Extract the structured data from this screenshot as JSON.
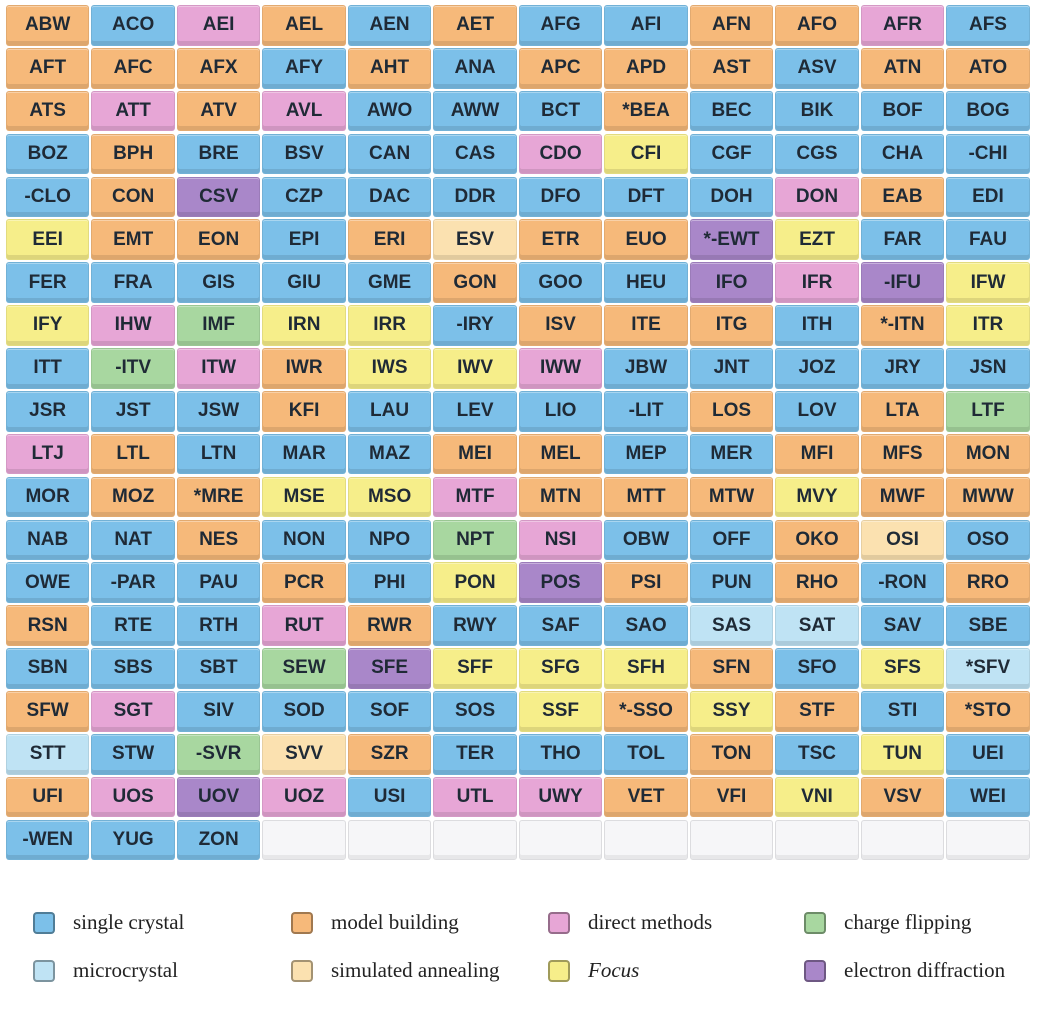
{
  "colors": {
    "single_crystal": "#7cc0e9",
    "model_building": "#f6b97a",
    "direct_methods": "#e7a6d6",
    "charge_flipping": "#a8d7a0",
    "microcrystal": "#bfe3f4",
    "simulated_annealing": "#fbe1b0",
    "focus": "#f6ee8a",
    "electron_diffraction": "#a987c9"
  },
  "cells": [
    {
      "code": "ABW",
      "method": "model_building"
    },
    {
      "code": "ACO",
      "method": "single_crystal"
    },
    {
      "code": "AEI",
      "method": "direct_methods"
    },
    {
      "code": "AEL",
      "method": "model_building"
    },
    {
      "code": "AEN",
      "method": "single_crystal"
    },
    {
      "code": "AET",
      "method": "model_building"
    },
    {
      "code": "AFG",
      "method": "single_crystal"
    },
    {
      "code": "AFI",
      "method": "single_crystal"
    },
    {
      "code": "AFN",
      "method": "model_building"
    },
    {
      "code": "AFO",
      "method": "model_building"
    },
    {
      "code": "AFR",
      "method": "direct_methods"
    },
    {
      "code": "AFS",
      "method": "single_crystal"
    },
    {
      "code": "AFT",
      "method": "model_building"
    },
    {
      "code": "AFC",
      "method": "model_building"
    },
    {
      "code": "AFX",
      "method": "model_building"
    },
    {
      "code": "AFY",
      "method": "single_crystal"
    },
    {
      "code": "AHT",
      "method": "model_building"
    },
    {
      "code": "ANA",
      "method": "single_crystal"
    },
    {
      "code": "APC",
      "method": "model_building"
    },
    {
      "code": "APD",
      "method": "model_building"
    },
    {
      "code": "AST",
      "method": "model_building"
    },
    {
      "code": "ASV",
      "method": "single_crystal"
    },
    {
      "code": "ATN",
      "method": "model_building"
    },
    {
      "code": "ATO",
      "method": "model_building"
    },
    {
      "code": "ATS",
      "method": "model_building"
    },
    {
      "code": "ATT",
      "method": "direct_methods"
    },
    {
      "code": "ATV",
      "method": "model_building"
    },
    {
      "code": "AVL",
      "method": "direct_methods"
    },
    {
      "code": "AWO",
      "method": "single_crystal"
    },
    {
      "code": "AWW",
      "method": "single_crystal"
    },
    {
      "code": "BCT",
      "method": "single_crystal"
    },
    {
      "code": "*BEA",
      "method": "model_building"
    },
    {
      "code": "BEC",
      "method": "single_crystal"
    },
    {
      "code": "BIK",
      "method": "single_crystal"
    },
    {
      "code": "BOF",
      "method": "single_crystal"
    },
    {
      "code": "BOG",
      "method": "single_crystal"
    },
    {
      "code": "BOZ",
      "method": "single_crystal"
    },
    {
      "code": "BPH",
      "method": "model_building"
    },
    {
      "code": "BRE",
      "method": "single_crystal"
    },
    {
      "code": "BSV",
      "method": "single_crystal"
    },
    {
      "code": "CAN",
      "method": "single_crystal"
    },
    {
      "code": "CAS",
      "method": "single_crystal"
    },
    {
      "code": "CDO",
      "method": "direct_methods"
    },
    {
      "code": "CFI",
      "method": "focus"
    },
    {
      "code": "CGF",
      "method": "single_crystal"
    },
    {
      "code": "CGS",
      "method": "single_crystal"
    },
    {
      "code": "CHA",
      "method": "single_crystal"
    },
    {
      "code": "-CHI",
      "method": "single_crystal"
    },
    {
      "code": "-CLO",
      "method": "single_crystal"
    },
    {
      "code": "CON",
      "method": "model_building"
    },
    {
      "code": "CSV",
      "method": "electron_diffraction"
    },
    {
      "code": "CZP",
      "method": "single_crystal"
    },
    {
      "code": "DAC",
      "method": "single_crystal"
    },
    {
      "code": "DDR",
      "method": "single_crystal"
    },
    {
      "code": "DFO",
      "method": "single_crystal"
    },
    {
      "code": "DFT",
      "method": "single_crystal"
    },
    {
      "code": "DOH",
      "method": "single_crystal"
    },
    {
      "code": "DON",
      "method": "direct_methods"
    },
    {
      "code": "EAB",
      "method": "model_building"
    },
    {
      "code": "EDI",
      "method": "single_crystal"
    },
    {
      "code": "EEI",
      "method": "focus"
    },
    {
      "code": "EMT",
      "method": "model_building"
    },
    {
      "code": "EON",
      "method": "model_building"
    },
    {
      "code": "EPI",
      "method": "single_crystal"
    },
    {
      "code": "ERI",
      "method": "model_building"
    },
    {
      "code": "ESV",
      "method": "simulated_annealing"
    },
    {
      "code": "ETR",
      "method": "model_building"
    },
    {
      "code": "EUO",
      "method": "model_building"
    },
    {
      "code": "*-EWT",
      "method": "electron_diffraction"
    },
    {
      "code": "EZT",
      "method": "focus"
    },
    {
      "code": "FAR",
      "method": "single_crystal"
    },
    {
      "code": "FAU",
      "method": "single_crystal"
    },
    {
      "code": "FER",
      "method": "single_crystal"
    },
    {
      "code": "FRA",
      "method": "single_crystal"
    },
    {
      "code": "GIS",
      "method": "single_crystal"
    },
    {
      "code": "GIU",
      "method": "single_crystal"
    },
    {
      "code": "GME",
      "method": "single_crystal"
    },
    {
      "code": "GON",
      "method": "model_building"
    },
    {
      "code": "GOO",
      "method": "single_crystal"
    },
    {
      "code": "HEU",
      "method": "single_crystal"
    },
    {
      "code": "IFO",
      "method": "electron_diffraction"
    },
    {
      "code": "IFR",
      "method": "direct_methods"
    },
    {
      "code": "-IFU",
      "method": "electron_diffraction"
    },
    {
      "code": "IFW",
      "method": "focus"
    },
    {
      "code": "IFY",
      "method": "focus"
    },
    {
      "code": "IHW",
      "method": "direct_methods"
    },
    {
      "code": "IMF",
      "method": "charge_flipping"
    },
    {
      "code": "IRN",
      "method": "focus"
    },
    {
      "code": "IRR",
      "method": "focus"
    },
    {
      "code": "-IRY",
      "method": "single_crystal"
    },
    {
      "code": "ISV",
      "method": "model_building"
    },
    {
      "code": "ITE",
      "method": "model_building"
    },
    {
      "code": "ITG",
      "method": "model_building"
    },
    {
      "code": "ITH",
      "method": "single_crystal"
    },
    {
      "code": "*-ITN",
      "method": "model_building"
    },
    {
      "code": "ITR",
      "method": "focus"
    },
    {
      "code": "ITT",
      "method": "single_crystal"
    },
    {
      "code": "-ITV",
      "method": "charge_flipping"
    },
    {
      "code": "ITW",
      "method": "direct_methods"
    },
    {
      "code": "IWR",
      "method": "model_building"
    },
    {
      "code": "IWS",
      "method": "focus"
    },
    {
      "code": "IWV",
      "method": "focus"
    },
    {
      "code": "IWW",
      "method": "direct_methods"
    },
    {
      "code": "JBW",
      "method": "single_crystal"
    },
    {
      "code": "JNT",
      "method": "single_crystal"
    },
    {
      "code": "JOZ",
      "method": "single_crystal"
    },
    {
      "code": "JRY",
      "method": "single_crystal"
    },
    {
      "code": "JSN",
      "method": "single_crystal"
    },
    {
      "code": "JSR",
      "method": "single_crystal"
    },
    {
      "code": "JST",
      "method": "single_crystal"
    },
    {
      "code": "JSW",
      "method": "single_crystal"
    },
    {
      "code": "KFI",
      "method": "model_building"
    },
    {
      "code": "LAU",
      "method": "single_crystal"
    },
    {
      "code": "LEV",
      "method": "single_crystal"
    },
    {
      "code": "LIO",
      "method": "single_crystal"
    },
    {
      "code": "-LIT",
      "method": "single_crystal"
    },
    {
      "code": "LOS",
      "method": "model_building"
    },
    {
      "code": "LOV",
      "method": "single_crystal"
    },
    {
      "code": "LTA",
      "method": "model_building"
    },
    {
      "code": "LTF",
      "method": "charge_flipping"
    },
    {
      "code": "LTJ",
      "method": "direct_methods"
    },
    {
      "code": "LTL",
      "method": "model_building"
    },
    {
      "code": "LTN",
      "method": "single_crystal"
    },
    {
      "code": "MAR",
      "method": "single_crystal"
    },
    {
      "code": "MAZ",
      "method": "single_crystal"
    },
    {
      "code": "MEI",
      "method": "model_building"
    },
    {
      "code": "MEL",
      "method": "model_building"
    },
    {
      "code": "MEP",
      "method": "single_crystal"
    },
    {
      "code": "MER",
      "method": "single_crystal"
    },
    {
      "code": "MFI",
      "method": "model_building"
    },
    {
      "code": "MFS",
      "method": "model_building"
    },
    {
      "code": "MON",
      "method": "model_building"
    },
    {
      "code": "MOR",
      "method": "single_crystal"
    },
    {
      "code": "MOZ",
      "method": "model_building"
    },
    {
      "code": "*MRE",
      "method": "model_building"
    },
    {
      "code": "MSE",
      "method": "focus"
    },
    {
      "code": "MSO",
      "method": "focus"
    },
    {
      "code": "MTF",
      "method": "direct_methods"
    },
    {
      "code": "MTN",
      "method": "model_building"
    },
    {
      "code": "MTT",
      "method": "model_building"
    },
    {
      "code": "MTW",
      "method": "model_building"
    },
    {
      "code": "MVY",
      "method": "focus"
    },
    {
      "code": "MWF",
      "method": "model_building"
    },
    {
      "code": "MWW",
      "method": "model_building"
    },
    {
      "code": "NAB",
      "method": "single_crystal"
    },
    {
      "code": "NAT",
      "method": "single_crystal"
    },
    {
      "code": "NES",
      "method": "model_building"
    },
    {
      "code": "NON",
      "method": "single_crystal"
    },
    {
      "code": "NPO",
      "method": "single_crystal"
    },
    {
      "code": "NPT",
      "method": "charge_flipping"
    },
    {
      "code": "NSI",
      "method": "direct_methods"
    },
    {
      "code": "OBW",
      "method": "single_crystal"
    },
    {
      "code": "OFF",
      "method": "single_crystal"
    },
    {
      "code": "OKO",
      "method": "model_building"
    },
    {
      "code": "OSI",
      "method": "simulated_annealing"
    },
    {
      "code": "OSO",
      "method": "single_crystal"
    },
    {
      "code": "OWE",
      "method": "single_crystal"
    },
    {
      "code": "-PAR",
      "method": "single_crystal"
    },
    {
      "code": "PAU",
      "method": "single_crystal"
    },
    {
      "code": "PCR",
      "method": "model_building"
    },
    {
      "code": "PHI",
      "method": "single_crystal"
    },
    {
      "code": "PON",
      "method": "focus"
    },
    {
      "code": "POS",
      "method": "electron_diffraction"
    },
    {
      "code": "PSI",
      "method": "model_building"
    },
    {
      "code": "PUN",
      "method": "single_crystal"
    },
    {
      "code": "RHO",
      "method": "model_building"
    },
    {
      "code": "-RON",
      "method": "single_crystal"
    },
    {
      "code": "RRO",
      "method": "model_building"
    },
    {
      "code": "RSN",
      "method": "model_building"
    },
    {
      "code": "RTE",
      "method": "single_crystal"
    },
    {
      "code": "RTH",
      "method": "single_crystal"
    },
    {
      "code": "RUT",
      "method": "direct_methods"
    },
    {
      "code": "RWR",
      "method": "model_building"
    },
    {
      "code": "RWY",
      "method": "single_crystal"
    },
    {
      "code": "SAF",
      "method": "single_crystal"
    },
    {
      "code": "SAO",
      "method": "single_crystal"
    },
    {
      "code": "SAS",
      "method": "microcrystal"
    },
    {
      "code": "SAT",
      "method": "microcrystal"
    },
    {
      "code": "SAV",
      "method": "single_crystal"
    },
    {
      "code": "SBE",
      "method": "single_crystal"
    },
    {
      "code": "SBN",
      "method": "single_crystal"
    },
    {
      "code": "SBS",
      "method": "single_crystal"
    },
    {
      "code": "SBT",
      "method": "single_crystal"
    },
    {
      "code": "SEW",
      "method": "charge_flipping"
    },
    {
      "code": "SFE",
      "method": "electron_diffraction"
    },
    {
      "code": "SFF",
      "method": "focus"
    },
    {
      "code": "SFG",
      "method": "focus"
    },
    {
      "code": "SFH",
      "method": "focus"
    },
    {
      "code": "SFN",
      "method": "model_building"
    },
    {
      "code": "SFO",
      "method": "single_crystal"
    },
    {
      "code": "SFS",
      "method": "focus"
    },
    {
      "code": "*SFV",
      "method": "microcrystal"
    },
    {
      "code": "SFW",
      "method": "model_building"
    },
    {
      "code": "SGT",
      "method": "direct_methods"
    },
    {
      "code": "SIV",
      "method": "single_crystal"
    },
    {
      "code": "SOD",
      "method": "single_crystal"
    },
    {
      "code": "SOF",
      "method": "single_crystal"
    },
    {
      "code": "SOS",
      "method": "single_crystal"
    },
    {
      "code": "SSF",
      "method": "focus"
    },
    {
      "code": "*-SSO",
      "method": "model_building"
    },
    {
      "code": "SSY",
      "method": "focus"
    },
    {
      "code": "STF",
      "method": "model_building"
    },
    {
      "code": "STI",
      "method": "single_crystal"
    },
    {
      "code": "*STO",
      "method": "model_building"
    },
    {
      "code": "STT",
      "method": "microcrystal"
    },
    {
      "code": "STW",
      "method": "single_crystal"
    },
    {
      "code": "-SVR",
      "method": "charge_flipping"
    },
    {
      "code": "SVV",
      "method": "simulated_annealing"
    },
    {
      "code": "SZR",
      "method": "model_building"
    },
    {
      "code": "TER",
      "method": "single_crystal"
    },
    {
      "code": "THO",
      "method": "single_crystal"
    },
    {
      "code": "TOL",
      "method": "single_crystal"
    },
    {
      "code": "TON",
      "method": "model_building"
    },
    {
      "code": "TSC",
      "method": "single_crystal"
    },
    {
      "code": "TUN",
      "method": "focus"
    },
    {
      "code": "UEI",
      "method": "single_crystal"
    },
    {
      "code": "UFI",
      "method": "model_building"
    },
    {
      "code": "UOS",
      "method": "direct_methods"
    },
    {
      "code": "UOV",
      "method": "electron_diffraction"
    },
    {
      "code": "UOZ",
      "method": "direct_methods"
    },
    {
      "code": "USI",
      "method": "single_crystal"
    },
    {
      "code": "UTL",
      "method": "direct_methods"
    },
    {
      "code": "UWY",
      "method": "direct_methods"
    },
    {
      "code": "VET",
      "method": "model_building"
    },
    {
      "code": "VFI",
      "method": "model_building"
    },
    {
      "code": "VNI",
      "method": "focus"
    },
    {
      "code": "VSV",
      "method": "model_building"
    },
    {
      "code": "WEI",
      "method": "single_crystal"
    },
    {
      "code": "-WEN",
      "method": "single_crystal"
    },
    {
      "code": "YUG",
      "method": "single_crystal"
    },
    {
      "code": "ZON",
      "method": "single_crystal"
    },
    {
      "code": "",
      "method": "empty"
    },
    {
      "code": "",
      "method": "empty"
    },
    {
      "code": "",
      "method": "empty"
    },
    {
      "code": "",
      "method": "empty"
    },
    {
      "code": "",
      "method": "empty"
    },
    {
      "code": "",
      "method": "empty"
    },
    {
      "code": "",
      "method": "empty"
    },
    {
      "code": "",
      "method": "empty"
    },
    {
      "code": "",
      "method": "empty"
    }
  ],
  "legend": [
    {
      "key": "single_crystal",
      "label": "single crystal",
      "italic": false
    },
    {
      "key": "model_building",
      "label": "model building",
      "italic": false
    },
    {
      "key": "direct_methods",
      "label": "direct methods",
      "italic": false
    },
    {
      "key": "charge_flipping",
      "label": "charge flipping",
      "italic": false
    },
    {
      "key": "microcrystal",
      "label": "microcrystal",
      "italic": false
    },
    {
      "key": "simulated_annealing",
      "label": "simulated annealing",
      "italic": false
    },
    {
      "key": "focus",
      "label": "Focus",
      "italic": true
    },
    {
      "key": "electron_diffraction",
      "label": "electron diffraction",
      "italic": false
    }
  ]
}
